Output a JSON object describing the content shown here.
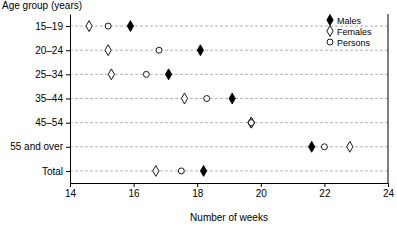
{
  "chart_data": {
    "type": "dot",
    "orientation": "horizontal",
    "x_label": "Number of weeks",
    "y_label": "Age group (years)",
    "categories": [
      "15–19",
      "20–24",
      "25–34",
      "35–44",
      "45–54",
      "55 and over",
      "Total"
    ],
    "series": [
      {
        "name": "Males",
        "color": "#000000",
        "marker": "diamond",
        "values": [
          15.9,
          18.1,
          17.1,
          19.1,
          19.7,
          21.6,
          18.2
        ]
      },
      {
        "name": "Females",
        "color": "#000000",
        "marker": "diamond-open",
        "values": [
          14.6,
          15.2,
          15.3,
          17.6,
          19.7,
          22.8,
          16.7
        ]
      },
      {
        "name": "Persons",
        "color": "#000000",
        "marker": "circle-open",
        "values": [
          15.2,
          16.8,
          16.4,
          18.3,
          19.7,
          22.0,
          17.5
        ]
      }
    ],
    "xlim": [
      14,
      24
    ],
    "xticks": [
      14,
      16,
      18,
      20,
      22,
      24
    ],
    "grid": true,
    "legend": "top-right"
  }
}
